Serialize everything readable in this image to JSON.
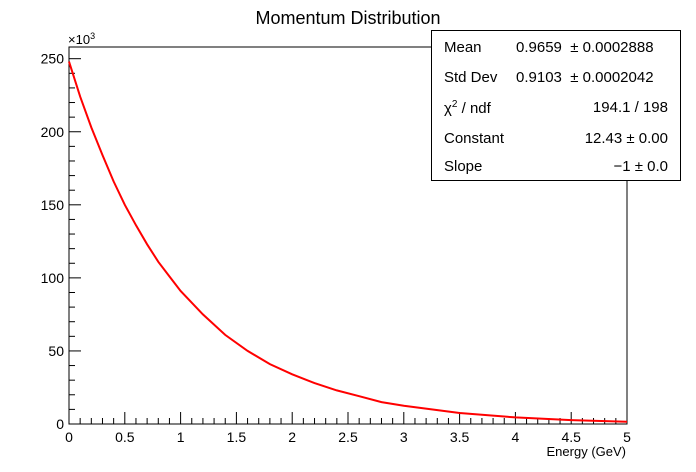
{
  "chart_data": {
    "type": "line",
    "title": "Momentum Distribution",
    "xlabel": "Energy (GeV)",
    "ylabel": "",
    "y_multiplier_label": "×10",
    "y_multiplier_exp": "3",
    "xlim": [
      0,
      5
    ],
    "ylim": [
      0,
      258
    ],
    "x_ticks": [
      "0",
      "0.5",
      "1",
      "1.5",
      "2",
      "2.5",
      "3",
      "3.5",
      "4",
      "4.5",
      "5"
    ],
    "y_ticks": [
      "0",
      "50",
      "100",
      "150",
      "200",
      "250"
    ],
    "series": [
      {
        "color": "#ff0000",
        "x": [
          0,
          0.1,
          0.2,
          0.3,
          0.4,
          0.5,
          0.6,
          0.7,
          0.8,
          0.9,
          1.0,
          1.2,
          1.4,
          1.6,
          1.8,
          2.0,
          2.2,
          2.4,
          2.6,
          2.8,
          3.0,
          3.5,
          4.0,
          4.5,
          5.0
        ],
        "values": [
          248,
          224,
          203,
          184,
          166,
          150,
          136,
          123,
          111,
          101,
          91,
          75,
          61,
          50,
          41,
          34,
          28,
          23,
          19,
          15,
          12.5,
          7.5,
          4.5,
          2.7,
          1.6
        ]
      }
    ],
    "grid": false,
    "stats": {
      "mean_label": "Mean",
      "mean_value": "0.9659",
      "mean_error": "± 0.0002888",
      "stddev_label": "Std Dev",
      "stddev_value": "0.9103",
      "stddev_error": "± 0.0002042",
      "chi2_label_prefix": "χ",
      "chi2_label_sup": "2",
      "chi2_label_suffix": " / ndf",
      "chi2_value": "194.1 / 198",
      "constant_label": "Constant",
      "constant_value": "12.43  ± 0.00",
      "slope_label": "Slope",
      "slope_value": "−1 ± 0.0"
    }
  }
}
